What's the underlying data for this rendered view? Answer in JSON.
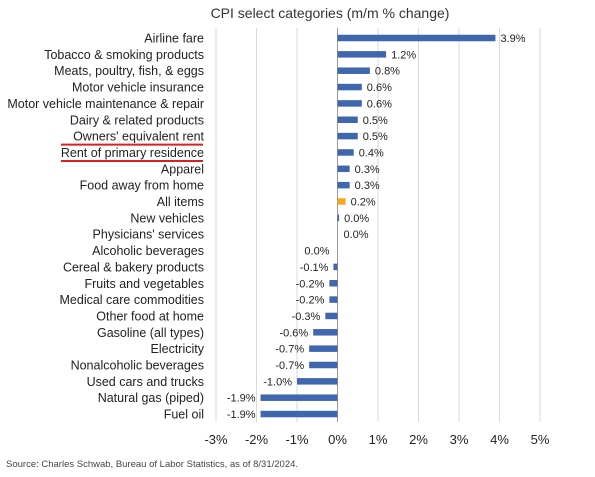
{
  "chart_data": {
    "type": "bar",
    "orientation": "horizontal",
    "title": "CPI select categories (m/m % change)",
    "categories": [
      "Airline fare",
      "Tobacco & smoking products",
      "Meats, poultry, fish, & eggs",
      "Motor vehicle insurance",
      "Motor vehicle maintenance & repair",
      "Dairy & related products",
      "Owners' equivalent rent",
      "Rent of primary residence",
      "Apparel",
      "Food away from home",
      "All items",
      "New vehicles",
      "Physicians' services",
      "Alcoholic beverages",
      "Cereal & bakery products",
      "Fruits and vegetables",
      "Medical care commodities",
      "Other food at home",
      "Gasoline (all types)",
      "Electricity",
      "Nonalcoholic beverages",
      "Used cars and trucks",
      "Natural gas (piped)",
      "Fuel oil"
    ],
    "values": [
      3.9,
      1.2,
      0.8,
      0.6,
      0.6,
      0.5,
      0.5,
      0.4,
      0.3,
      0.3,
      0.2,
      0.04,
      0.0,
      -0.0,
      -0.1,
      -0.2,
      -0.2,
      -0.3,
      -0.6,
      -0.7,
      -0.7,
      -1.0,
      -1.9,
      -1.9
    ],
    "value_labels": [
      "3.9%",
      "1.2%",
      "0.8%",
      "0.6%",
      "0.6%",
      "0.5%",
      "0.5%",
      "0.4%",
      "0.3%",
      "0.3%",
      "0.2%",
      "0.0%",
      "0.0%",
      "0.0%",
      "-0.1%",
      "-0.2%",
      "-0.2%",
      "-0.3%",
      "-0.6%",
      "-0.7%",
      "-0.7%",
      "-1.0%",
      "-1.9%",
      "-1.9%"
    ],
    "highlight_category": "All items",
    "underlined_categories": [
      "Owners' equivalent rent",
      "Rent of primary residence"
    ],
    "xlim": [
      -3,
      5
    ],
    "xticks": [
      -3,
      -2,
      -1,
      0,
      1,
      2,
      3,
      4,
      5
    ],
    "xtick_labels": [
      "-3%",
      "-2%",
      "-1%",
      "0%",
      "1%",
      "2%",
      "3%",
      "4%",
      "5%"
    ],
    "grid": true,
    "colors": {
      "bar": "#3f67ad",
      "highlight": "#f5a623",
      "underline": "#d92020",
      "grid": "#d9d9d9"
    }
  },
  "source_note": "Source: Charles Schwab, Bureau of Labor Statistics, as of 8/31/2024."
}
